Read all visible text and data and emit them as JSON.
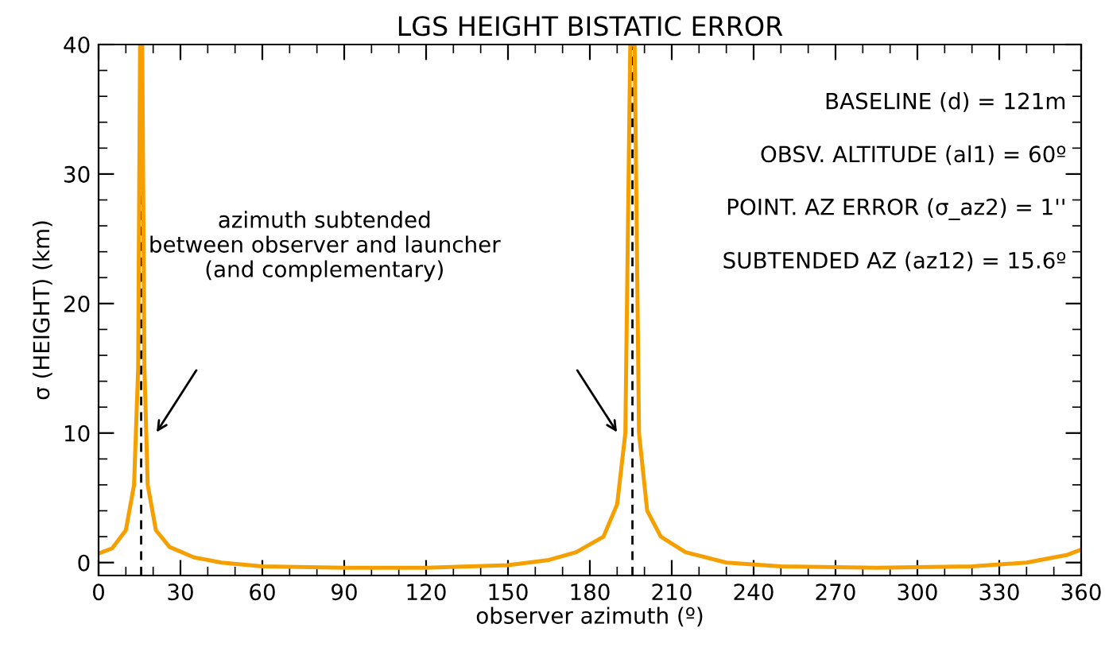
{
  "chart_data": {
    "type": "line",
    "title": "LGS HEIGHT BISTATIC ERROR",
    "xlabel": "observer azimuth (º)",
    "ylabel": "σ (HEIGHT) (km)",
    "x": [
      0,
      5,
      10,
      13,
      14.5,
      15.2,
      16.0,
      16.8,
      18,
      21,
      26,
      35,
      45,
      60,
      90,
      105,
      120,
      150,
      165,
      175,
      185,
      190,
      193,
      194.8,
      196.4,
      198,
      201,
      206,
      215,
      230,
      250,
      285,
      320,
      340,
      355,
      360
    ],
    "series": [
      {
        "color": "#f5a000",
        "values": [
          0.7,
          1.1,
          2.5,
          6,
          15,
          40,
          40,
          15,
          6,
          2.5,
          1.2,
          0.4,
          0,
          -0.3,
          -0.4,
          -0.4,
          -0.4,
          -0.2,
          0.2,
          0.8,
          2,
          4.5,
          10,
          40,
          40,
          10,
          4,
          2,
          0.8,
          0,
          -0.3,
          -0.4,
          -0.3,
          0,
          0.6,
          1
        ]
      }
    ],
    "xlim": [
      0,
      360
    ],
    "xticks": [
      0,
      30,
      60,
      90,
      120,
      150,
      180,
      210,
      240,
      270,
      300,
      330,
      360
    ],
    "ylim": [
      -1,
      40
    ],
    "yticks": [
      0,
      10,
      20,
      30,
      40
    ],
    "grid": false,
    "marker": "none",
    "line_style": "solid",
    "ref_lines": [
      {
        "axis": "x",
        "value": 15.6,
        "color": "#000000",
        "line_style": "dashed"
      },
      {
        "axis": "x",
        "value": 195.6,
        "color": "#000000",
        "line_style": "dashed"
      }
    ],
    "annotations": [
      "azimuth subtended\nbetween observer and launcher\n(and complementary)",
      "BASELINE (d) = 121m",
      "OBSV. ALTITUDE (al1) = 60º",
      "POINT. AZ ERROR (σ_az2) = 1''",
      "SUBTENDED AZ (az12) = 15.6º"
    ]
  }
}
